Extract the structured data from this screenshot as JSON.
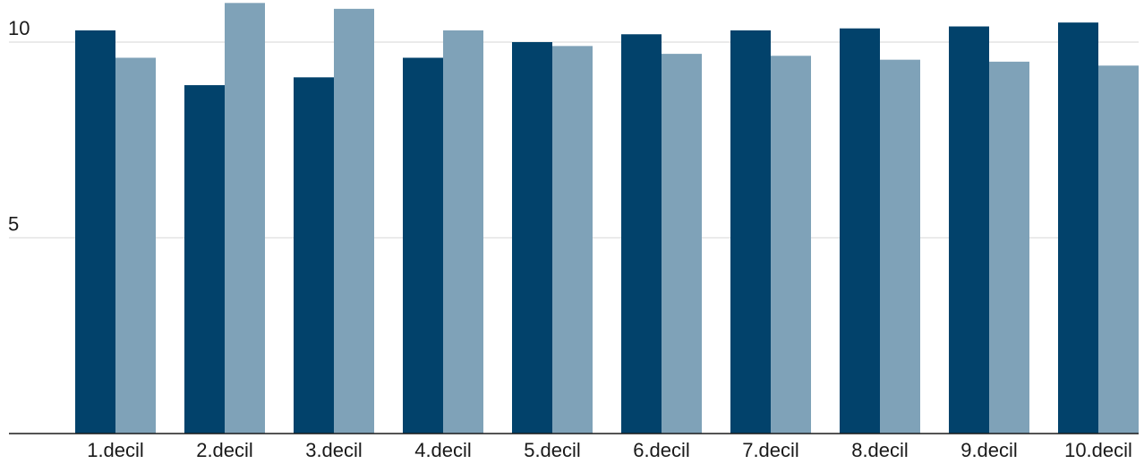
{
  "chart_data": {
    "type": "bar",
    "title": "",
    "xlabel": "",
    "ylabel": "",
    "categories": [
      "1.decil",
      "2.decil",
      "3.decil",
      "4.decil",
      "5.decil",
      "6.decil",
      "7.decil",
      "8.decil",
      "9.decil",
      "10.decil"
    ],
    "series": [
      {
        "color": "#02426b",
        "values": [
          10.3,
          8.9,
          9.1,
          9.6,
          10.0,
          10.2,
          10.3,
          10.35,
          10.4,
          10.5
        ]
      },
      {
        "color": "#7fa2b8",
        "values": [
          9.6,
          11.0,
          10.85,
          10.3,
          9.9,
          9.7,
          9.65,
          9.55,
          9.5,
          9.4
        ]
      }
    ],
    "ylim": [
      0,
      11.05
    ],
    "yticks": [
      5,
      10
    ],
    "ytick_labels": [
      "5",
      "10"
    ],
    "grid": true,
    "legend": "none"
  }
}
